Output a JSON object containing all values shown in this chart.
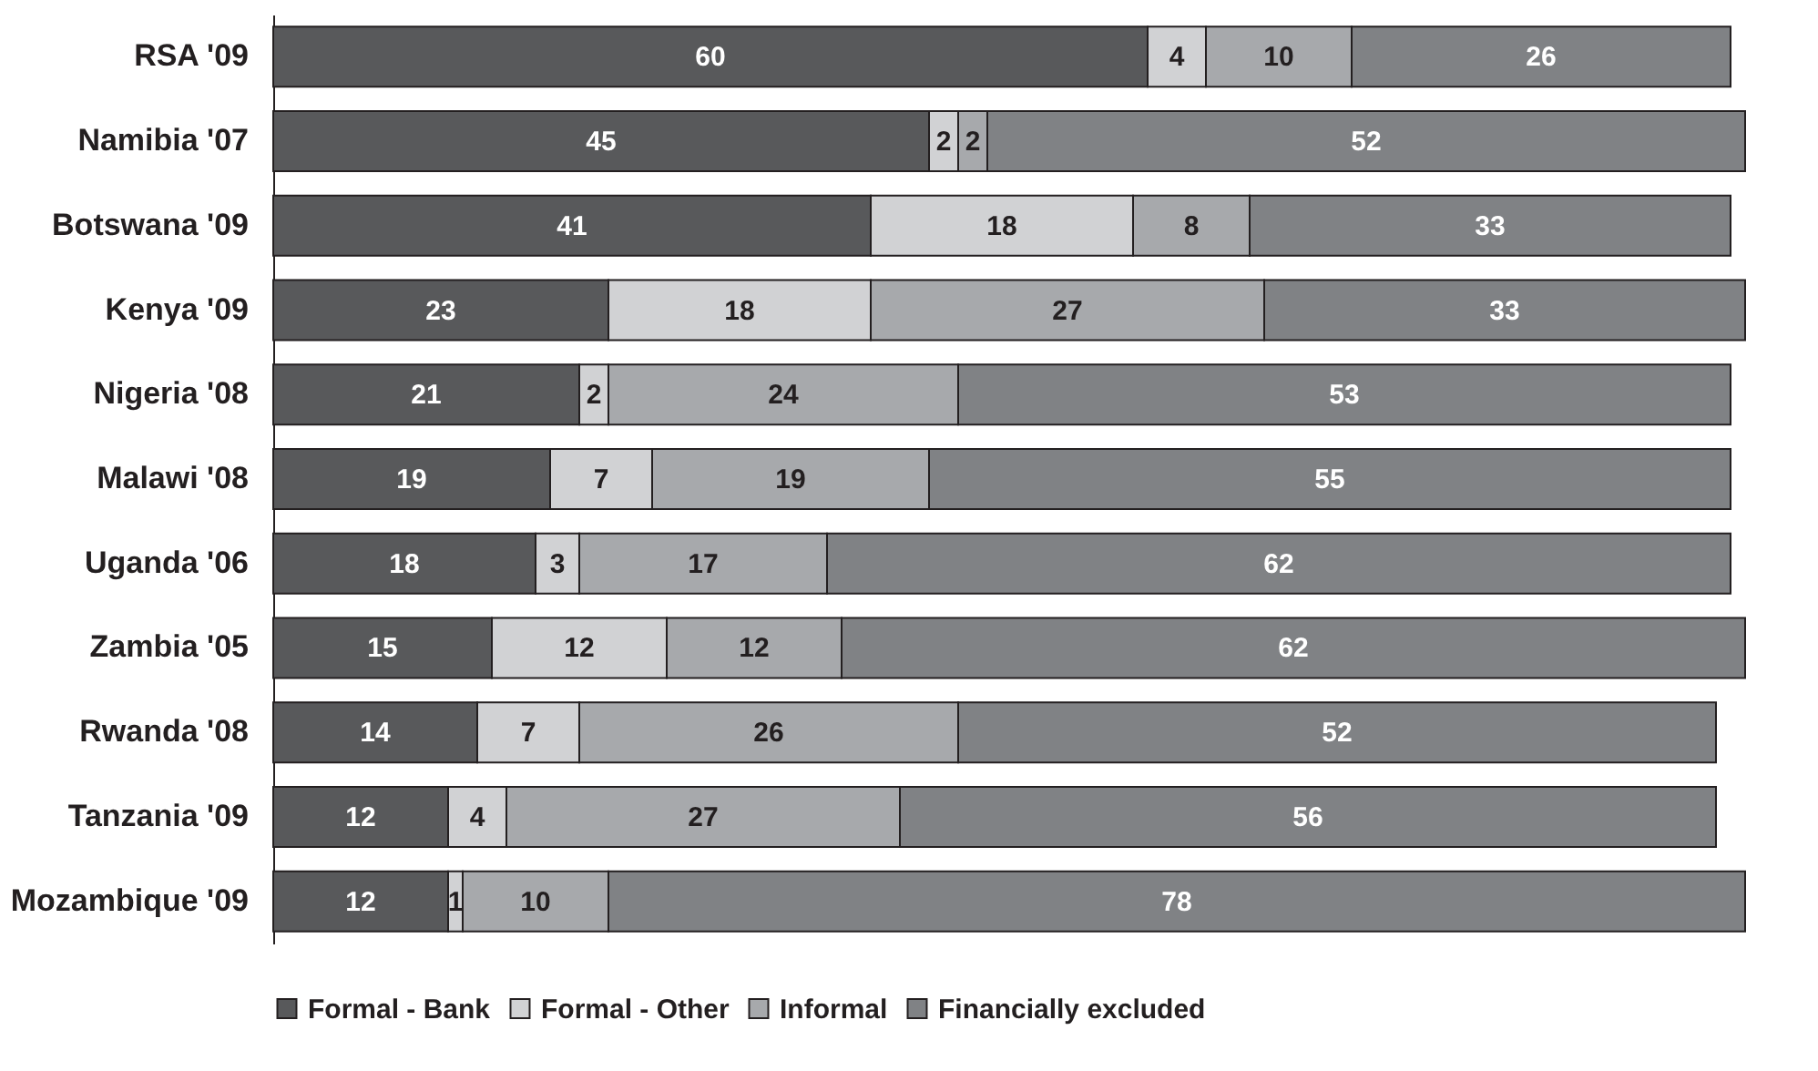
{
  "chart_data": {
    "type": "bar",
    "orientation": "horizontal",
    "stacked": true,
    "data_labels": true,
    "grid": false,
    "legend": "bottom",
    "categories": [
      "RSA '09",
      "Namibia '07",
      "Botswana '09",
      "Kenya '09",
      "Nigeria '08",
      "Malawi '08",
      "Uganda '06",
      "Zambia '05",
      "Rwanda '08",
      "Tanzania '09",
      "Mozambique '09"
    ],
    "series": [
      {
        "name": "Formal - Bank",
        "color": "#58595b",
        "values": [
          60,
          45,
          41,
          23,
          21,
          19,
          18,
          15,
          14,
          12,
          12
        ]
      },
      {
        "name": "Formal - Other",
        "color": "#d1d2d4",
        "values": [
          4,
          2,
          18,
          18,
          2,
          7,
          3,
          12,
          7,
          4,
          1
        ]
      },
      {
        "name": "Informal",
        "color": "#a7a9ac",
        "values": [
          10,
          2,
          8,
          27,
          24,
          19,
          17,
          12,
          26,
          27,
          10
        ]
      },
      {
        "name": "Financially excluded",
        "color": "#808285",
        "values": [
          26,
          52,
          33,
          33,
          53,
          55,
          62,
          62,
          52,
          56,
          78
        ]
      }
    ]
  }
}
